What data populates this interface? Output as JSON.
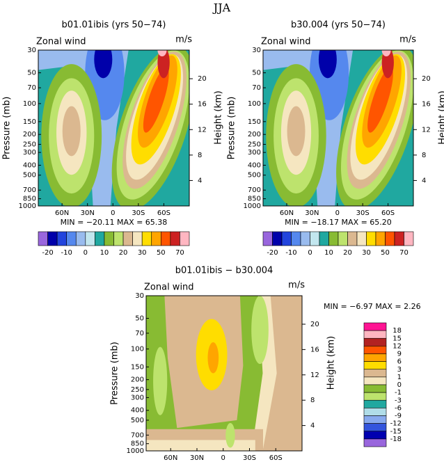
{
  "title": "JJA",
  "axes": {
    "ylabel": "Pressure (mb)",
    "y2label": "Height (km)",
    "ylim": [
      1000,
      30
    ],
    "yticks": [
      30,
      50,
      70,
      100,
      150,
      200,
      250,
      300,
      400,
      500,
      700,
      850,
      1000
    ],
    "y2lim": [
      0,
      24.5
    ],
    "y2ticks": [
      4,
      8,
      12,
      16,
      20
    ],
    "xlim": [
      88,
      -90
    ],
    "xticks": [
      {
        "value": 60,
        "label": "60N"
      },
      {
        "value": 30,
        "label": "30N"
      },
      0,
      {
        "value": -30,
        "label": "30S"
      },
      {
        "value": -60,
        "label": "60S"
      }
    ]
  },
  "panels": [
    {
      "title": "b01.01ibis (yrs 50−74)",
      "left_text": "Zonal wind",
      "right_text": "m/s",
      "stats": "MIN =  −20.11    MAX =  65.38",
      "colorbar": 0
    },
    {
      "title": "b30.004 (yrs 50−74)",
      "left_text": "Zonal wind",
      "right_text": "m/s",
      "stats": "MIN =  −18.17    MAX =  65.20",
      "colorbar": 0
    },
    {
      "title": "b01.01ibis − b30.004",
      "left_text": "Zonal wind",
      "right_text": "m/s",
      "stats": "MIN =   −6.97   MAX =    2.26",
      "colorbar": 1
    }
  ],
  "colorbars": [
    {
      "orientation": "horizontal",
      "ticks": [
        -20,
        -10,
        0,
        10,
        20,
        30,
        50,
        70
      ],
      "colors": [
        "#9966dd",
        "#0000aa",
        "#2244dd",
        "#5588ee",
        "#99bbee",
        "#c2e6ee",
        "#20a8a0",
        "#88bb33",
        "#bde36d",
        "#dbb890",
        "#f5e6c0",
        "#ffdd00",
        "#ffa500",
        "#ff5500",
        "#cc2222",
        "#ffb6c1"
      ]
    },
    {
      "orientation": "vertical",
      "ticks": [
        18,
        15,
        12,
        9,
        6,
        3,
        1,
        0,
        -1,
        -3,
        -6,
        -9,
        -12,
        -15,
        -18
      ],
      "colors": [
        "#ff1493",
        "#ffb6c1",
        "#b22222",
        "#ff5500",
        "#ffa500",
        "#ffdd00",
        "#dbb890",
        "#f5e6c0",
        "#88bb33",
        "#bde36d",
        "#20a8a0",
        "#b0dde8",
        "#88aaee",
        "#3355dd",
        "#0000b0",
        "#9966dd"
      ]
    }
  ]
}
